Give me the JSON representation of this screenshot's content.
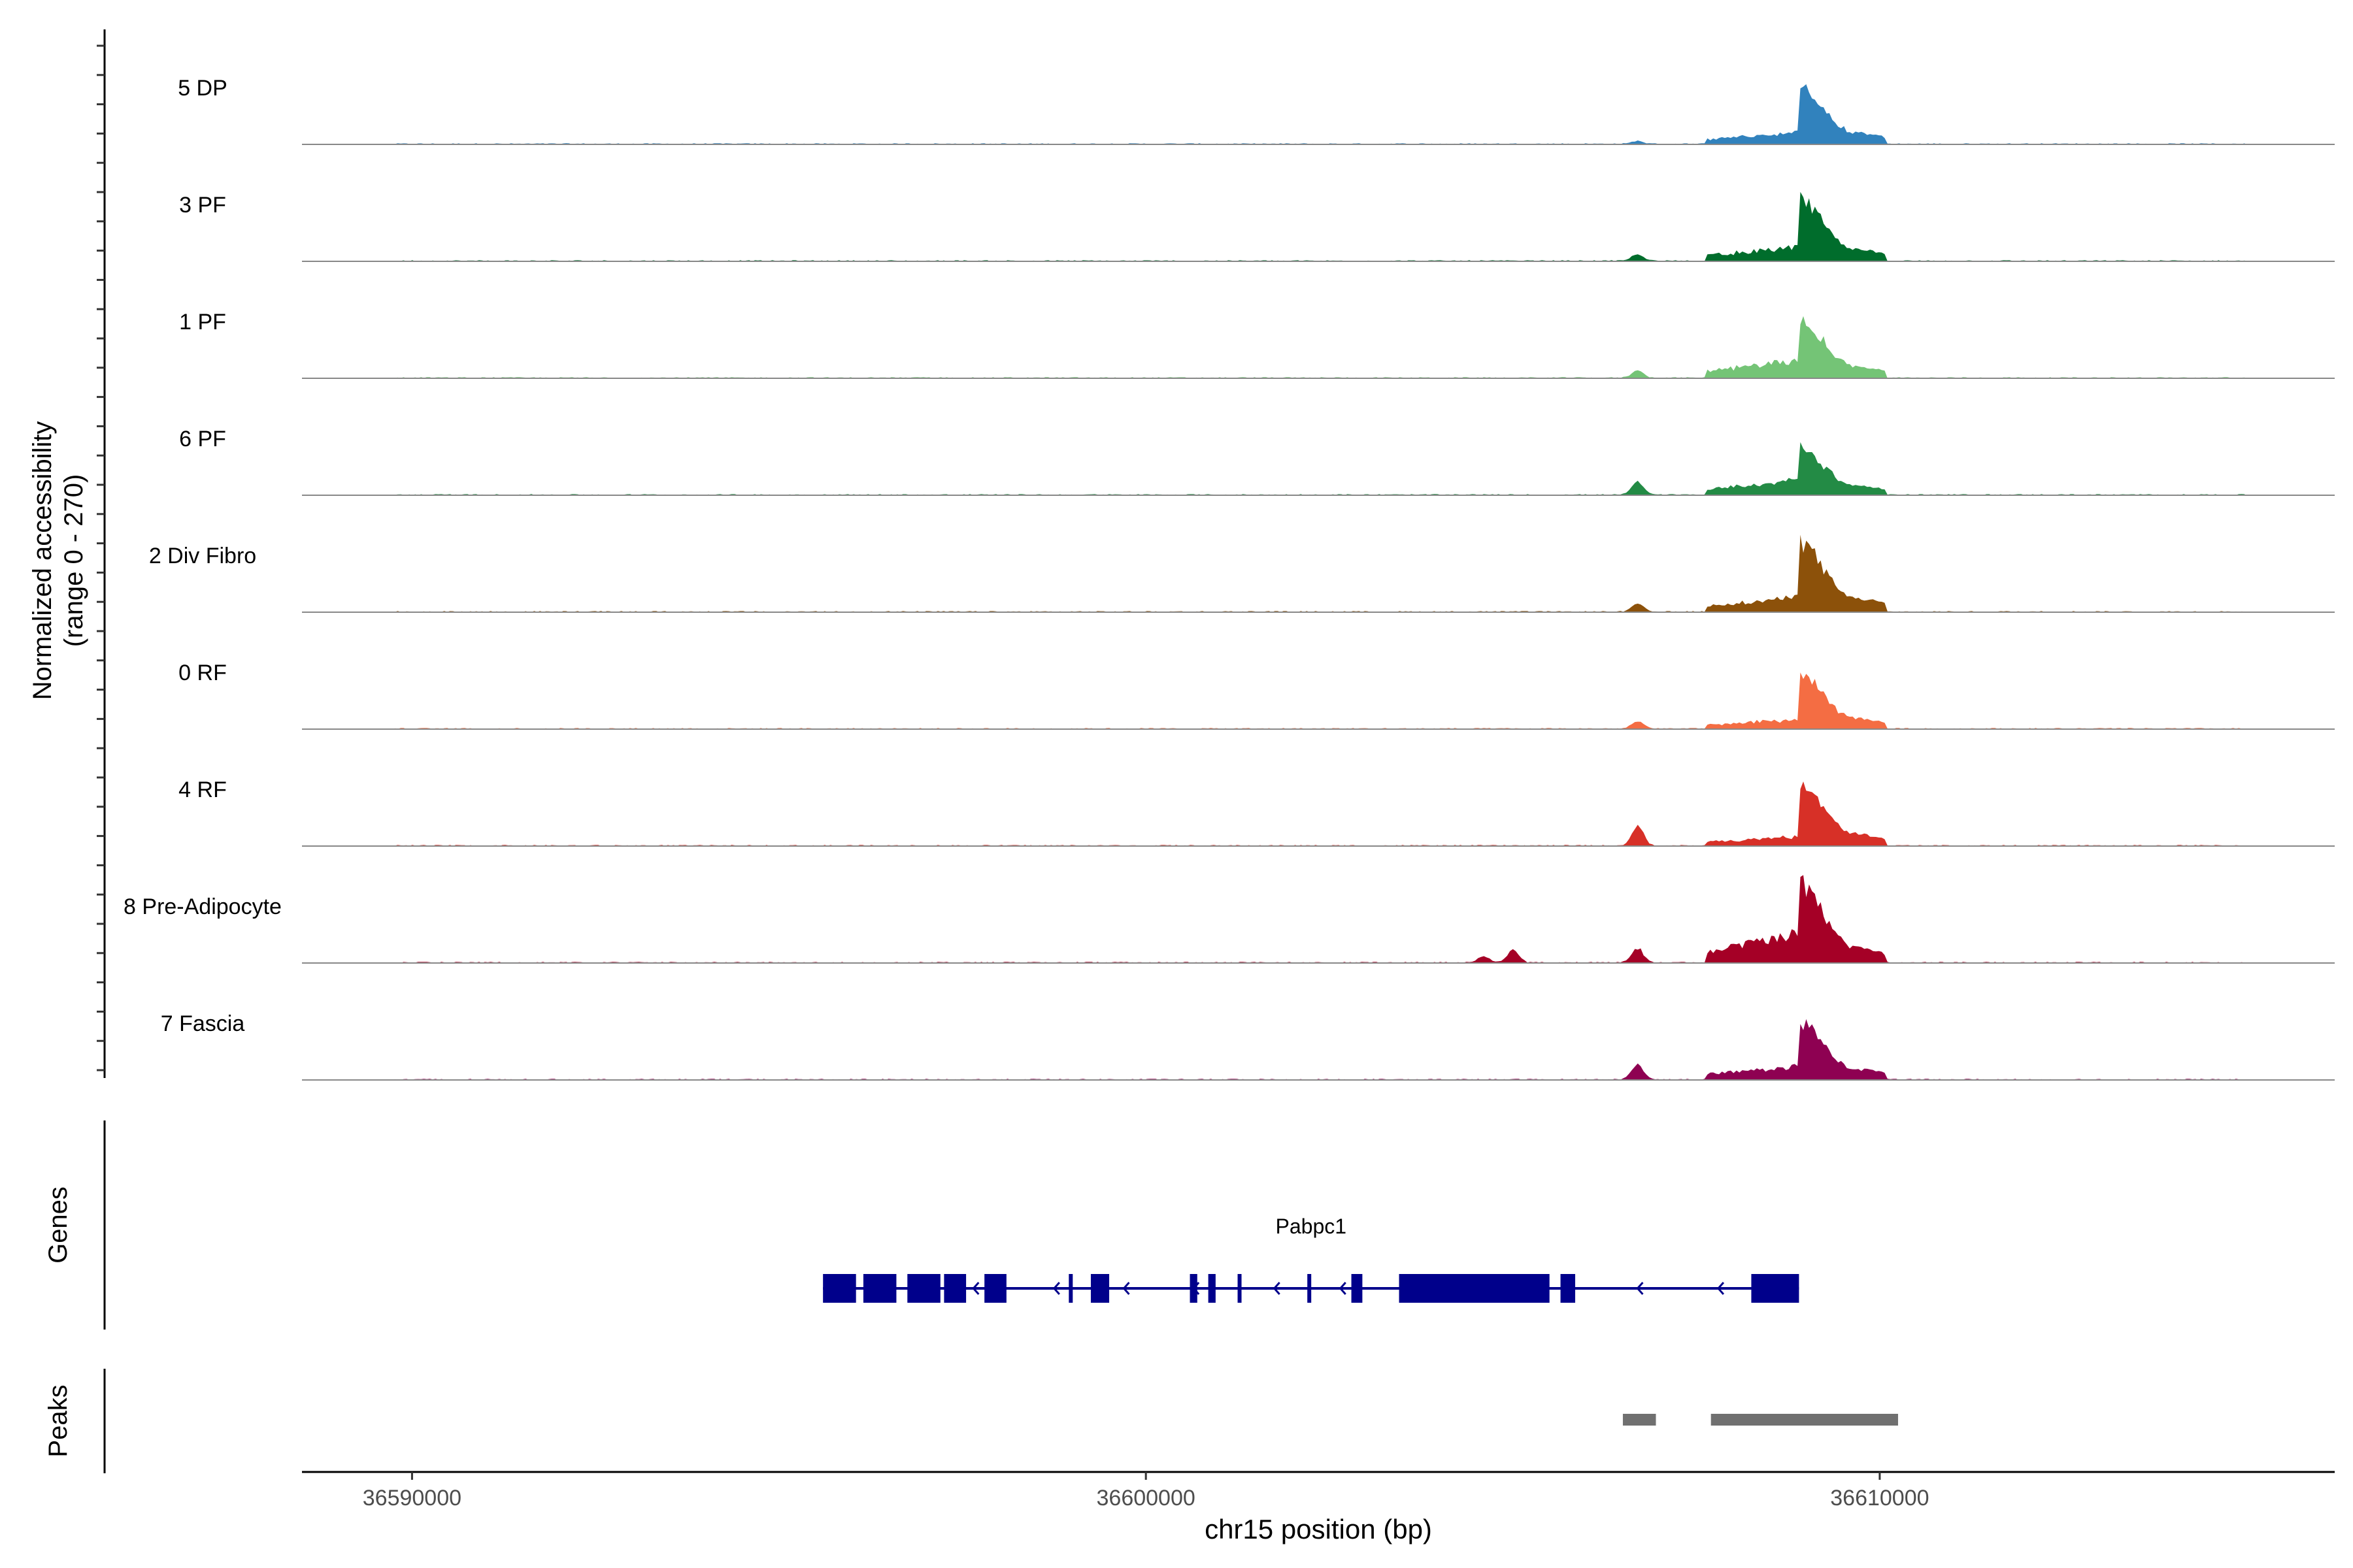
{
  "chart_data": {
    "type": "area",
    "region": "chr15",
    "y_axis": {
      "label_line1": "Normalized accessibility",
      "label_line2": "(range 0 - 270)",
      "ylim": [
        0,
        270
      ]
    },
    "x_axis": {
      "label": "chr15 position (bp)",
      "xlim": [
        36588500,
        36616200
      ],
      "ticks": [
        36590000,
        36600000,
        36610000
      ],
      "tick_labels": [
        "36590000",
        "36600000",
        "36610000"
      ]
    },
    "tracks": [
      {
        "name": "5 DP",
        "color": "#3182BD",
        "peak_height": 193,
        "cluster_height": 35,
        "bumps": [
          [
            36606700,
            8
          ]
        ]
      },
      {
        "name": "3 PF",
        "color": "#006D2C",
        "peak_height": 206,
        "cluster_height": 42,
        "bumps": [
          [
            36606700,
            18
          ]
        ]
      },
      {
        "name": "1 PF",
        "color": "#74C476",
        "peak_height": 206,
        "cluster_height": 52,
        "bumps": [
          [
            36606700,
            20
          ]
        ]
      },
      {
        "name": "6 PF",
        "color": "#238B45",
        "peak_height": 164,
        "cluster_height": 45,
        "bumps": [
          [
            36606700,
            35
          ]
        ]
      },
      {
        "name": "2 Div Fibro",
        "color": "#8C510A",
        "peak_height": 237,
        "cluster_height": 45,
        "bumps": [
          [
            36606700,
            22
          ]
        ]
      },
      {
        "name": "0 RF",
        "color": "#F46D43",
        "peak_height": 182,
        "cluster_height": 28,
        "bumps": [
          [
            36606700,
            20
          ]
        ]
      },
      {
        "name": "4 RF",
        "color": "#D73027",
        "peak_height": 210,
        "cluster_height": 28,
        "bumps": [
          [
            36606700,
            55
          ]
        ]
      },
      {
        "name": "8 Pre-Adipocyte",
        "color": "#A50026",
        "peak_height": 270,
        "cluster_height": 88,
        "bumps": [
          [
            36606700,
            40
          ],
          [
            36605000,
            35
          ],
          [
            36604600,
            18
          ]
        ]
      },
      {
        "name": "7 Fascia",
        "color": "#8E0152",
        "peak_height": 190,
        "cluster_height": 40,
        "bumps": [
          [
            36606700,
            45
          ]
        ]
      }
    ],
    "genes_track": {
      "label": "Genes",
      "gene_name": "Pabpc1",
      "color": "#00008B",
      "span": [
        36595600,
        36608900
      ],
      "exons": [
        [
          36595600,
          36596050
        ],
        [
          36596150,
          36596600
        ],
        [
          36596750,
          36597200
        ],
        [
          36597250,
          36597550
        ],
        [
          36597800,
          36598100
        ],
        [
          36598950,
          36599000
        ],
        [
          36599250,
          36599500
        ],
        [
          36600600,
          36600700
        ],
        [
          36600850,
          36600950
        ],
        [
          36601250,
          36601300
        ],
        [
          36602200,
          36602220
        ],
        [
          36602800,
          36602950
        ],
        [
          36603450,
          36605500
        ],
        [
          36605650,
          36605850
        ],
        [
          36608250,
          36608900
        ]
      ],
      "arrows": [
        36596400,
        36597650,
        36598750,
        36599700,
        36600650,
        36601750,
        36602650,
        36605750,
        36606700,
        36607800
      ]
    },
    "peaks_track": {
      "label": "Peaks",
      "color": "#707070",
      "peaks": [
        [
          36606500,
          36606950
        ],
        [
          36607700,
          36610250
        ]
      ]
    }
  }
}
